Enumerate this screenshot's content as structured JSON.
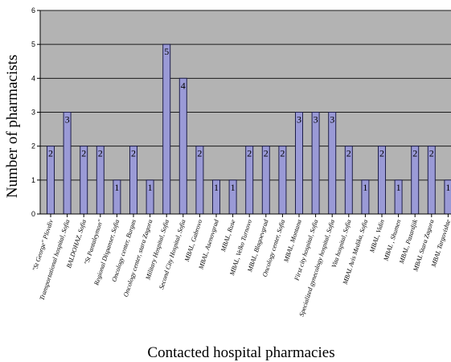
{
  "chart_data": {
    "type": "bar",
    "xlabel": "Contacted hospital pharmacies",
    "ylabel": "Number of pharmacists",
    "ylim": [
      0,
      6
    ],
    "yticks": [
      0,
      1,
      2,
      3,
      4,
      5,
      6
    ],
    "grid": true,
    "colors": {
      "plot_background": "#b3b3b3",
      "bar_fill": "#9a9ad6",
      "bar_stroke": "#1e1e4a",
      "gridline": "#1a1a1a",
      "axis": "#000000"
    },
    "categories": [
      "\"St George\" Plovdiv",
      "Transportational hospital, Sofia",
      "BALDOHAZ, Sofia",
      "\"St Pantaleymon\"",
      "Regional Dispanser, Sofia",
      "Oncology center, Burgas",
      "Oncology center, stara Zagora",
      "Military Hospital, Sofia",
      "Second City Hospital, Sofia",
      "MBAL, Gabrovo",
      "MBAL, Asenovgrad",
      "MBAL, Ruse",
      "MBAL, Velko Turnovo",
      "MBAL, Blagoevgrad",
      "Oncology center, Sofia",
      "MBAL, Montana",
      "First city hospital, Sofia",
      "Specialized gynecology hospital, Sofia",
      "Vita hospital, Sofia",
      "MBAL Avis Medika, Sofia",
      "MBAL, Vidin",
      "MBAL , Shumen",
      "MBAL, Pazardjik",
      "MBAL Stara Zagora",
      "MBAL Targovishte"
    ],
    "values": [
      2,
      3,
      2,
      2,
      1,
      2,
      1,
      5,
      4,
      2,
      1,
      1,
      2,
      2,
      2,
      3,
      3,
      3,
      2,
      1,
      2,
      1,
      2,
      2,
      1
    ],
    "data_labels": [
      "2",
      "3",
      "2",
      "2",
      "1",
      "2",
      "1",
      "5",
      "4",
      "2",
      "1",
      "1",
      "2",
      "2",
      "2",
      "3",
      "3",
      "3",
      "2",
      "1",
      "2",
      "1",
      "2",
      "2",
      "1"
    ]
  }
}
